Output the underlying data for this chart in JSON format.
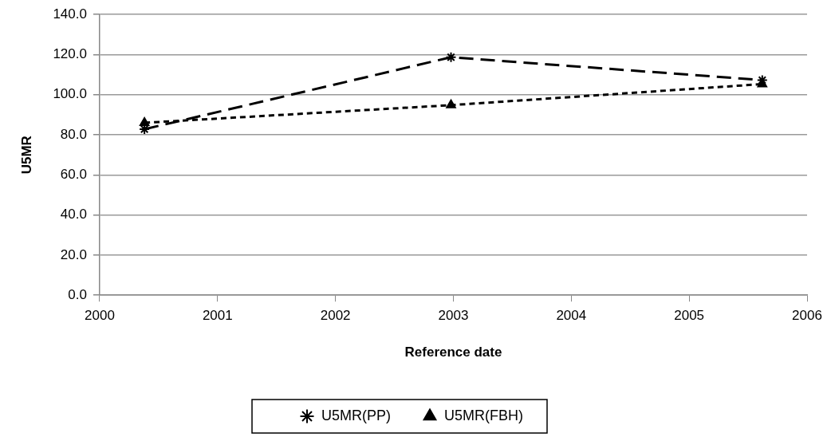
{
  "chart_data": {
    "type": "line",
    "xlabel": "Reference date",
    "ylabel": "U5MR",
    "xlim": [
      2000,
      2006
    ],
    "xticks": [
      2000,
      2001,
      2002,
      2003,
      2004,
      2005,
      2006
    ],
    "ylim": [
      0,
      140
    ],
    "yticks": [
      {
        "value": 0,
        "label": "0.0"
      },
      {
        "value": 20,
        "label": "20.0"
      },
      {
        "value": 40,
        "label": "40.0"
      },
      {
        "value": 60,
        "label": "60.0"
      },
      {
        "value": 80,
        "label": "80.0"
      },
      {
        "value": 100,
        "label": "100.0"
      },
      {
        "value": 120,
        "label": "120.0"
      },
      {
        "value": 140,
        "label": "140.0"
      }
    ],
    "grid": "y",
    "legend": "bottom",
    "x": [
      2000.38,
      2002.98,
      2005.62
    ],
    "series": [
      {
        "name": "U5MR(PP)",
        "color": "#000000",
        "values": [
          82.8,
          118.7,
          107.3
        ],
        "marker": "cross",
        "line_style": "dashed"
      },
      {
        "name": "U5MR(FBH)",
        "color": "#000000",
        "values": [
          86.0,
          94.8,
          105.3
        ],
        "marker": "triangle",
        "line_style": "dotted"
      }
    ]
  }
}
